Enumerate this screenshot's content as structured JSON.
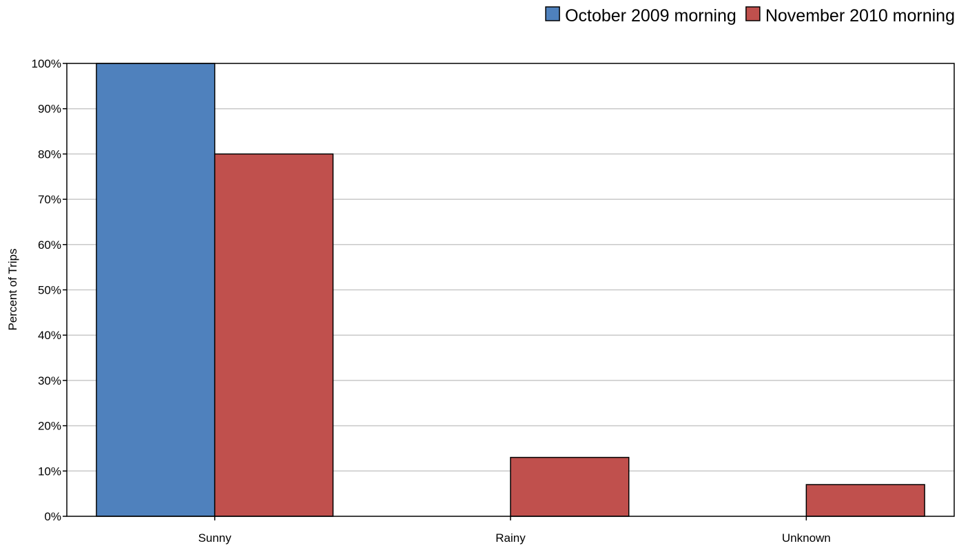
{
  "chart_data": {
    "type": "bar",
    "categories": [
      "Sunny",
      "Rainy",
      "Unknown"
    ],
    "series": [
      {
        "name": "October 2009 morning",
        "values": [
          100,
          0,
          0
        ],
        "color": "#4f81bd"
      },
      {
        "name": "November 2010 morning",
        "values": [
          80,
          13,
          7
        ],
        "color": "#c0504d"
      }
    ],
    "ylabel": "Percent of Trips",
    "ylim": [
      0,
      100
    ],
    "yticks": [
      "0%",
      "10%",
      "20%",
      "30%",
      "40%",
      "50%",
      "60%",
      "70%",
      "80%",
      "90%",
      "100%"
    ],
    "grid": true,
    "legend_position": "top-right"
  }
}
